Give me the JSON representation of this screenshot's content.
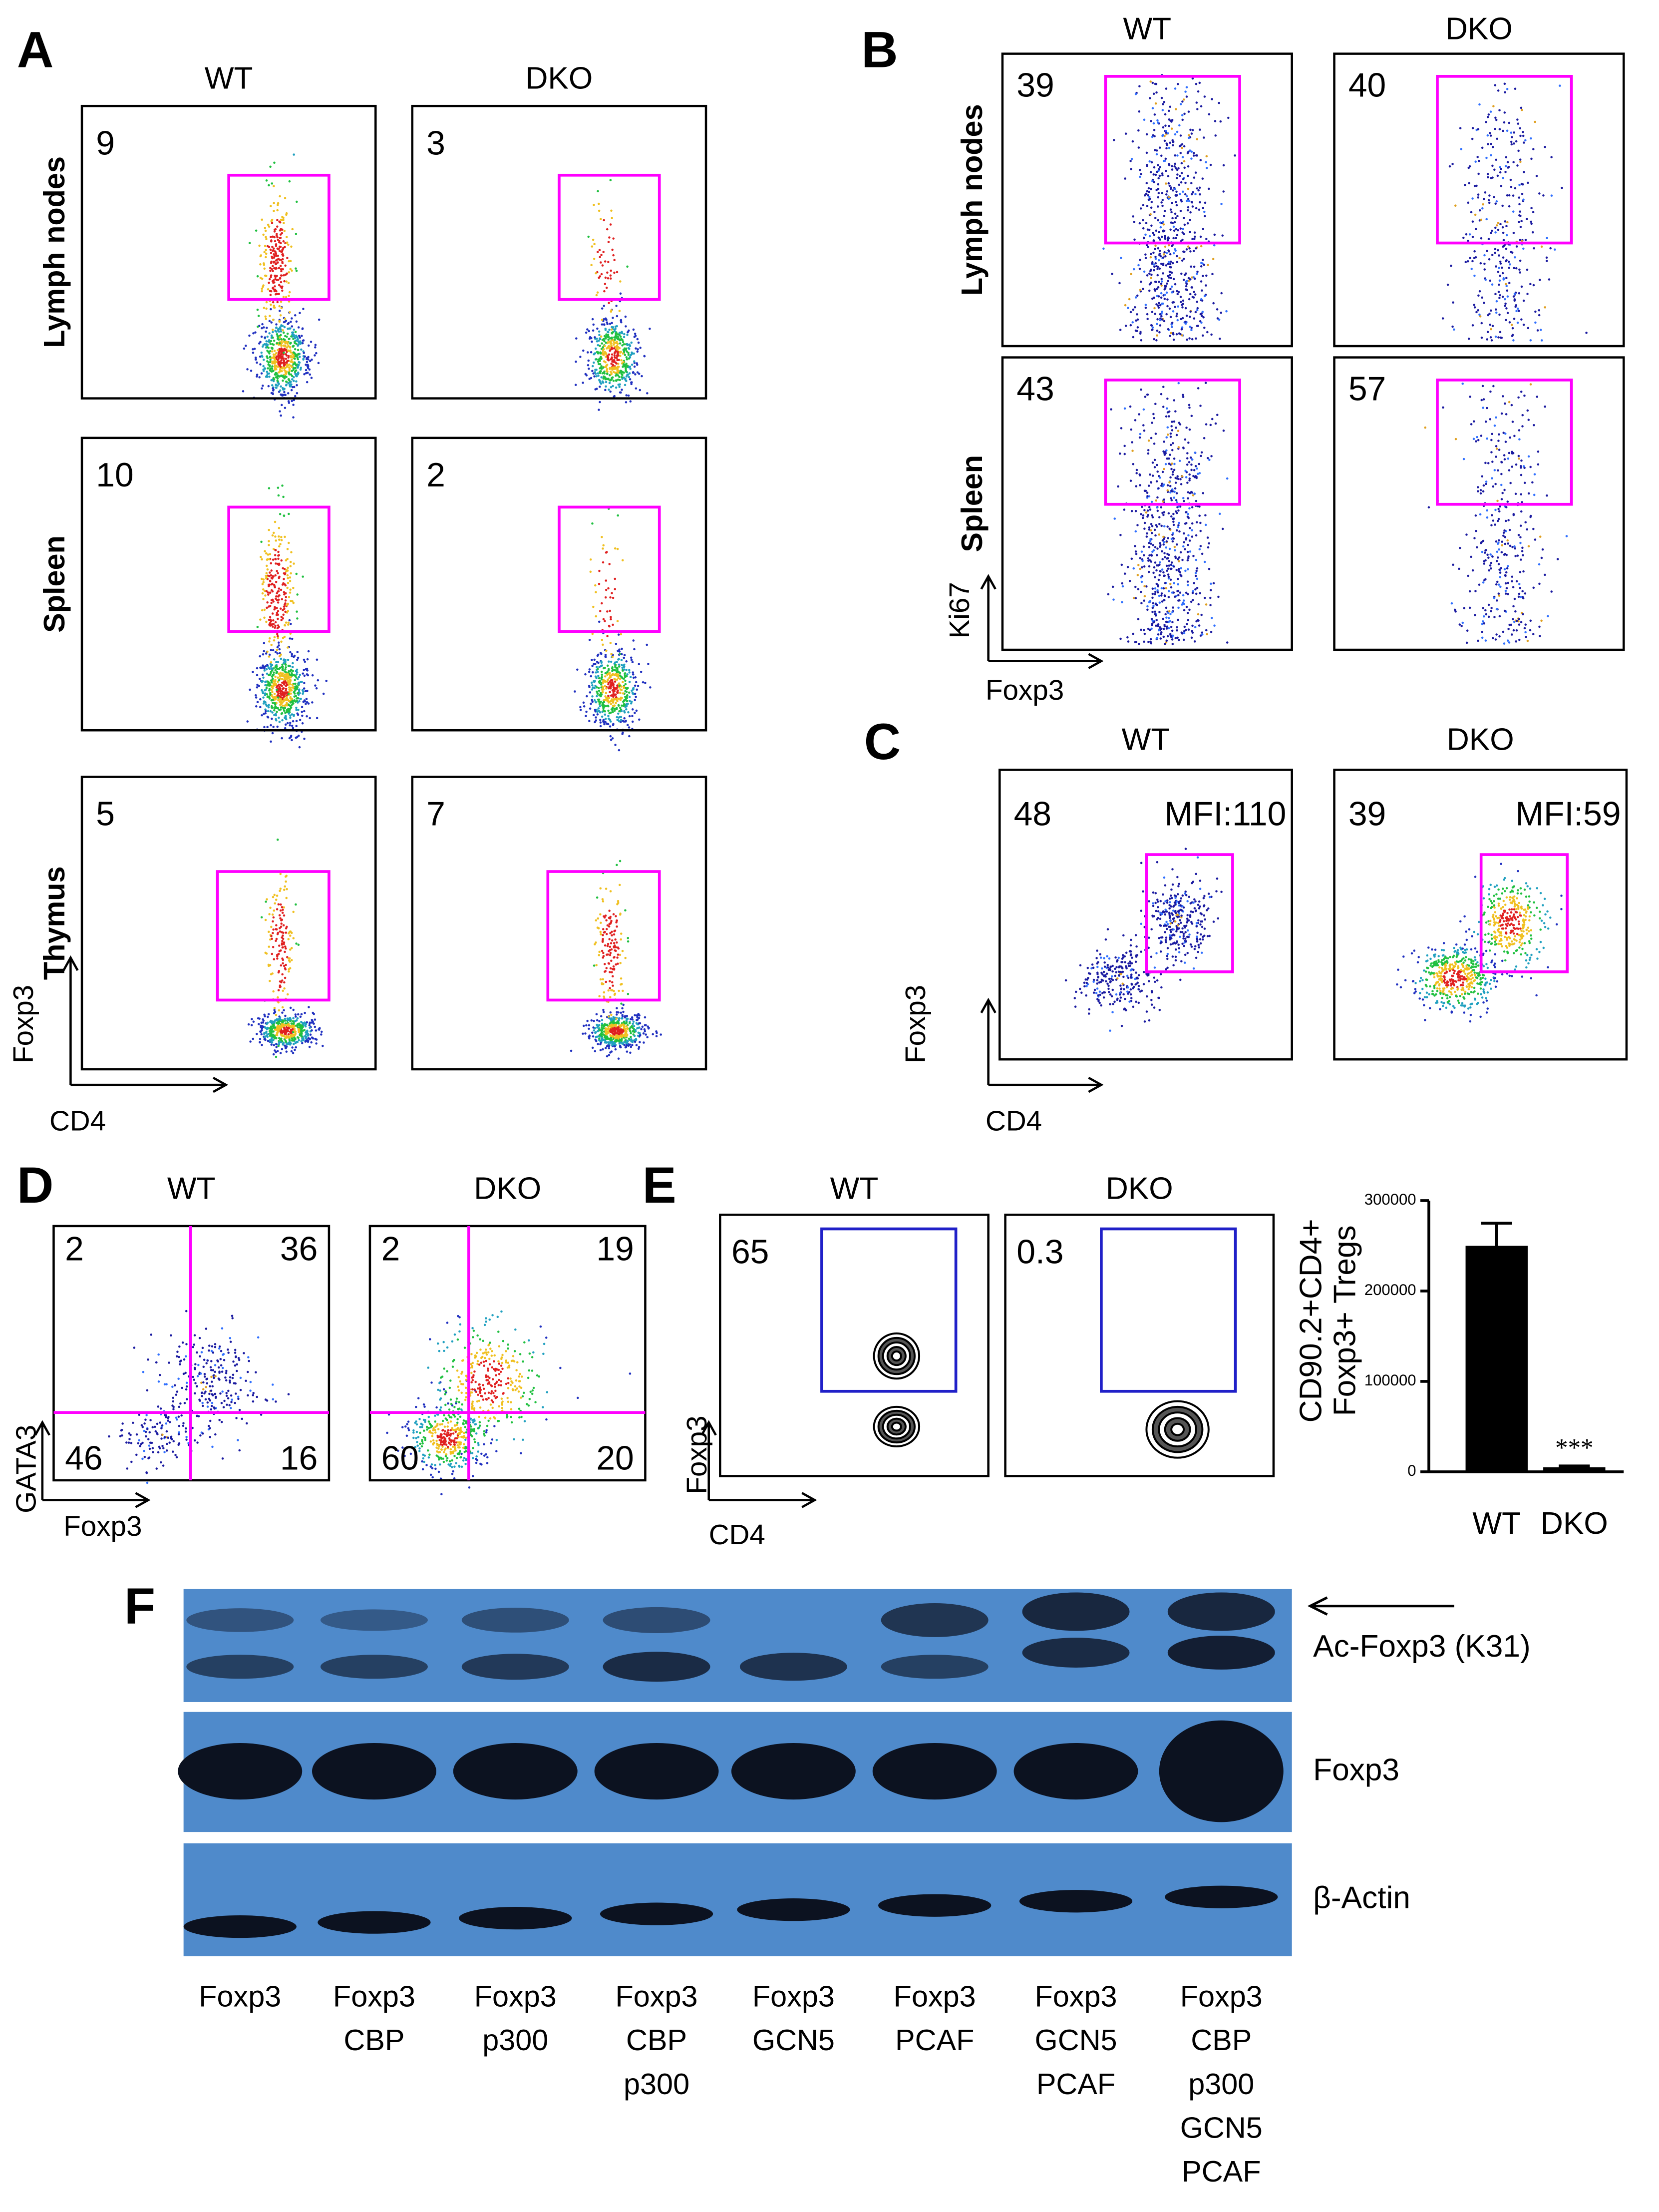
{
  "panels": {
    "A": {
      "label": "A",
      "columns": [
        "WT",
        "DKO"
      ],
      "rows": [
        "Lymph nodes",
        "Spleen",
        "Thymus"
      ],
      "percentages": [
        [
          "9",
          "3"
        ],
        [
          "10",
          "2"
        ],
        [
          "5",
          "7"
        ]
      ],
      "y_axis": "Foxp3",
      "x_axis": "CD4"
    },
    "B": {
      "label": "B",
      "columns": [
        "WT",
        "DKO"
      ],
      "rows": [
        "Lymph nodes",
        "Spleen"
      ],
      "percentages": [
        [
          "39",
          "40"
        ],
        [
          "43",
          "57"
        ]
      ],
      "y_axis": "Ki67",
      "x_axis": "Foxp3"
    },
    "C": {
      "label": "C",
      "columns": [
        "WT",
        "DKO"
      ],
      "percentages": [
        "48",
        "39"
      ],
      "mfi": [
        "MFI:110",
        "MFI:59"
      ],
      "y_axis": "Foxp3",
      "x_axis": "CD4"
    },
    "D": {
      "label": "D",
      "columns": [
        "WT",
        "DKO"
      ],
      "quadrants": [
        [
          "2",
          "36",
          "46",
          "16"
        ],
        [
          "2",
          "19",
          "60",
          "20"
        ]
      ],
      "y_axis": "GATA3",
      "x_axis": "Foxp3"
    },
    "E": {
      "label": "E",
      "columns": [
        "WT",
        "DKO"
      ],
      "percentages": [
        "65",
        "0.3"
      ],
      "y_axis": "Foxp3",
      "x_axis": "CD4"
    },
    "F": {
      "label": "F",
      "bands": [
        "Ac-Foxp3 (K31)",
        "Foxp3",
        "β-Actin"
      ],
      "lanes": [
        [
          "Foxp3"
        ],
        [
          "Foxp3",
          "CBP"
        ],
        [
          "Foxp3",
          "p300"
        ],
        [
          "Foxp3",
          "CBP",
          "p300"
        ],
        [
          "Foxp3",
          "GCN5"
        ],
        [
          "Foxp3",
          "PCAF"
        ],
        [
          "Foxp3",
          "GCN5",
          "PCAF"
        ],
        [
          "Foxp3",
          "CBP",
          "p300",
          "GCN5",
          "PCAF"
        ]
      ]
    }
  },
  "chart_data": {
    "type": "bar",
    "ylabel": [
      "CD90.2+CD4+",
      "Foxp3+ Tregs"
    ],
    "categories": [
      "WT",
      "DKO"
    ],
    "values": [
      250000,
      5000
    ],
    "errors": [
      25000,
      1500
    ],
    "significance": "***",
    "color": "#000000",
    "ylim": [
      0,
      300000
    ],
    "yticks": [
      0,
      100000,
      200000,
      300000
    ]
  }
}
